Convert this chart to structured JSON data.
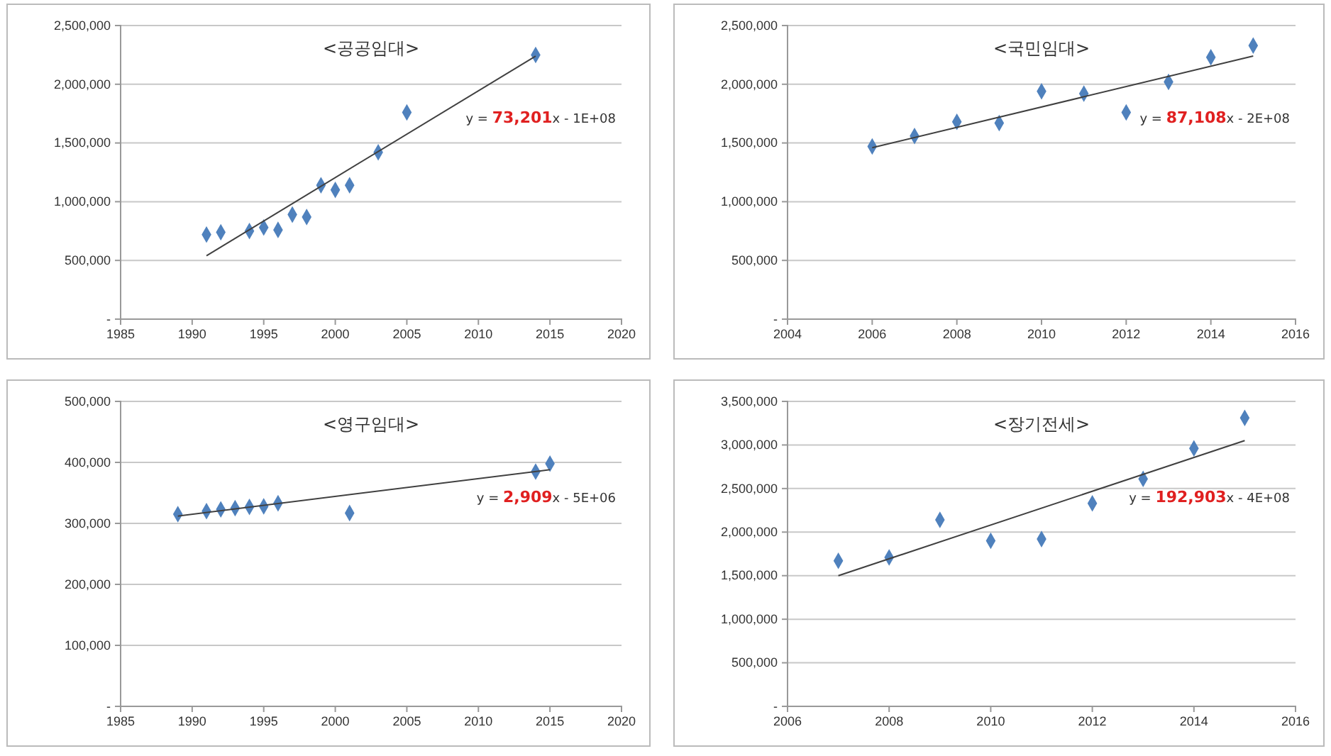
{
  "chart_data": [
    {
      "type": "scatter",
      "title": "<공공임대>",
      "marker": "diamond",
      "grid": "y",
      "annotations": [
        "y = 73,201x - 1E+08"
      ],
      "xlim": [
        1985,
        2020
      ],
      "xticks": [
        1985,
        1990,
        1995,
        2000,
        2005,
        2010,
        2015,
        2020
      ],
      "ylim": [
        0,
        2500000
      ],
      "yticks": [
        {
          "value": 0,
          "label": "-"
        },
        {
          "value": 500000,
          "label": "500,000"
        },
        {
          "value": 1000000,
          "label": "1,000,000"
        },
        {
          "value": 1500000,
          "label": "1,500,000"
        },
        {
          "value": 2000000,
          "label": "2,000,000"
        },
        {
          "value": 2500000,
          "label": "2,500,000"
        }
      ],
      "series": [
        {
          "color": "#4f81bd",
          "x": [
            1991,
            1992,
            1994,
            1995,
            1996,
            1997,
            1998,
            1999,
            2000,
            2001,
            2003,
            2005,
            2014
          ],
          "values": [
            720000,
            740000,
            750000,
            780000,
            760000,
            890000,
            870000,
            1140000,
            1100000,
            1140000,
            1420000,
            1760000,
            2250000
          ]
        },
        {
          "type": "line",
          "color": "#404040",
          "marker": "none",
          "x": [
            1991,
            2014
          ],
          "values": [
            540000,
            2240000
          ]
        }
      ]
    },
    {
      "type": "scatter",
      "title": "<국민임대>",
      "marker": "diamond",
      "grid": "y",
      "annotations": [
        "y = 87,108x - 2E+08"
      ],
      "xlim": [
        2004,
        2016
      ],
      "xticks": [
        2004,
        2006,
        2008,
        2010,
        2012,
        2014,
        2016
      ],
      "ylim": [
        0,
        2500000
      ],
      "yticks": [
        {
          "value": 0,
          "label": "-"
        },
        {
          "value": 500000,
          "label": "500,000"
        },
        {
          "value": 1000000,
          "label": "1,000,000"
        },
        {
          "value": 1500000,
          "label": "1,500,000"
        },
        {
          "value": 2000000,
          "label": "2,000,000"
        },
        {
          "value": 2500000,
          "label": "2,500,000"
        }
      ],
      "series": [
        {
          "color": "#4f81bd",
          "x": [
            2006,
            2007,
            2008,
            2009,
            2010,
            2011,
            2012,
            2013,
            2014,
            2015
          ],
          "values": [
            1470000,
            1560000,
            1680000,
            1670000,
            1940000,
            1920000,
            1760000,
            2020000,
            2230000,
            2330000
          ]
        },
        {
          "type": "line",
          "color": "#404040",
          "marker": "none",
          "x": [
            2006,
            2015
          ],
          "values": [
            1460000,
            2240000
          ]
        }
      ]
    },
    {
      "type": "scatter",
      "title": "<영구임대>",
      "marker": "diamond",
      "grid": "y",
      "annotations": [
        "y = 2,909x - 5E+06"
      ],
      "xlim": [
        1985,
        2020
      ],
      "xticks": [
        1985,
        1990,
        1995,
        2000,
        2005,
        2010,
        2015,
        2020
      ],
      "ylim": [
        0,
        500000
      ],
      "yticks": [
        {
          "value": 0,
          "label": "-"
        },
        {
          "value": 100000,
          "label": "100,000"
        },
        {
          "value": 200000,
          "label": "200,000"
        },
        {
          "value": 300000,
          "label": "300,000"
        },
        {
          "value": 400000,
          "label": "400,000"
        },
        {
          "value": 500000,
          "label": "500,000"
        }
      ],
      "series": [
        {
          "color": "#4f81bd",
          "x": [
            1989,
            1991,
            1992,
            1993,
            1994,
            1995,
            1996,
            2001,
            2014,
            2015
          ],
          "values": [
            315000,
            320000,
            323000,
            325000,
            327000,
            328000,
            333000,
            317000,
            385000,
            398000
          ]
        },
        {
          "type": "line",
          "color": "#404040",
          "marker": "none",
          "x": [
            1989,
            2015
          ],
          "values": [
            312000,
            388000
          ]
        }
      ]
    },
    {
      "type": "scatter",
      "title": "<장기전세>",
      "marker": "diamond",
      "grid": "y",
      "annotations": [
        "y = 192,903x - 4E+08"
      ],
      "xlim": [
        2006,
        2016
      ],
      "xticks": [
        2006,
        2008,
        2010,
        2012,
        2014,
        2016
      ],
      "ylim": [
        0,
        3500000
      ],
      "yticks": [
        {
          "value": 0,
          "label": "-"
        },
        {
          "value": 500000,
          "label": "500,000"
        },
        {
          "value": 1000000,
          "label": "1,000,000"
        },
        {
          "value": 1500000,
          "label": "1,500,000"
        },
        {
          "value": 2000000,
          "label": "2,000,000"
        },
        {
          "value": 2500000,
          "label": "2,500,000"
        },
        {
          "value": 3000000,
          "label": "3,000,000"
        },
        {
          "value": 3500000,
          "label": "3,500,000"
        }
      ],
      "series": [
        {
          "color": "#4f81bd",
          "x": [
            2007,
            2008,
            2009,
            2010,
            2011,
            2012,
            2013,
            2014,
            2015
          ],
          "values": [
            1670000,
            1710000,
            2140000,
            1900000,
            1920000,
            2330000,
            2610000,
            2960000,
            3310000
          ]
        },
        {
          "type": "line",
          "color": "#404040",
          "marker": "none",
          "x": [
            2007,
            2015
          ],
          "values": [
            1500000,
            3050000
          ]
        }
      ]
    }
  ]
}
